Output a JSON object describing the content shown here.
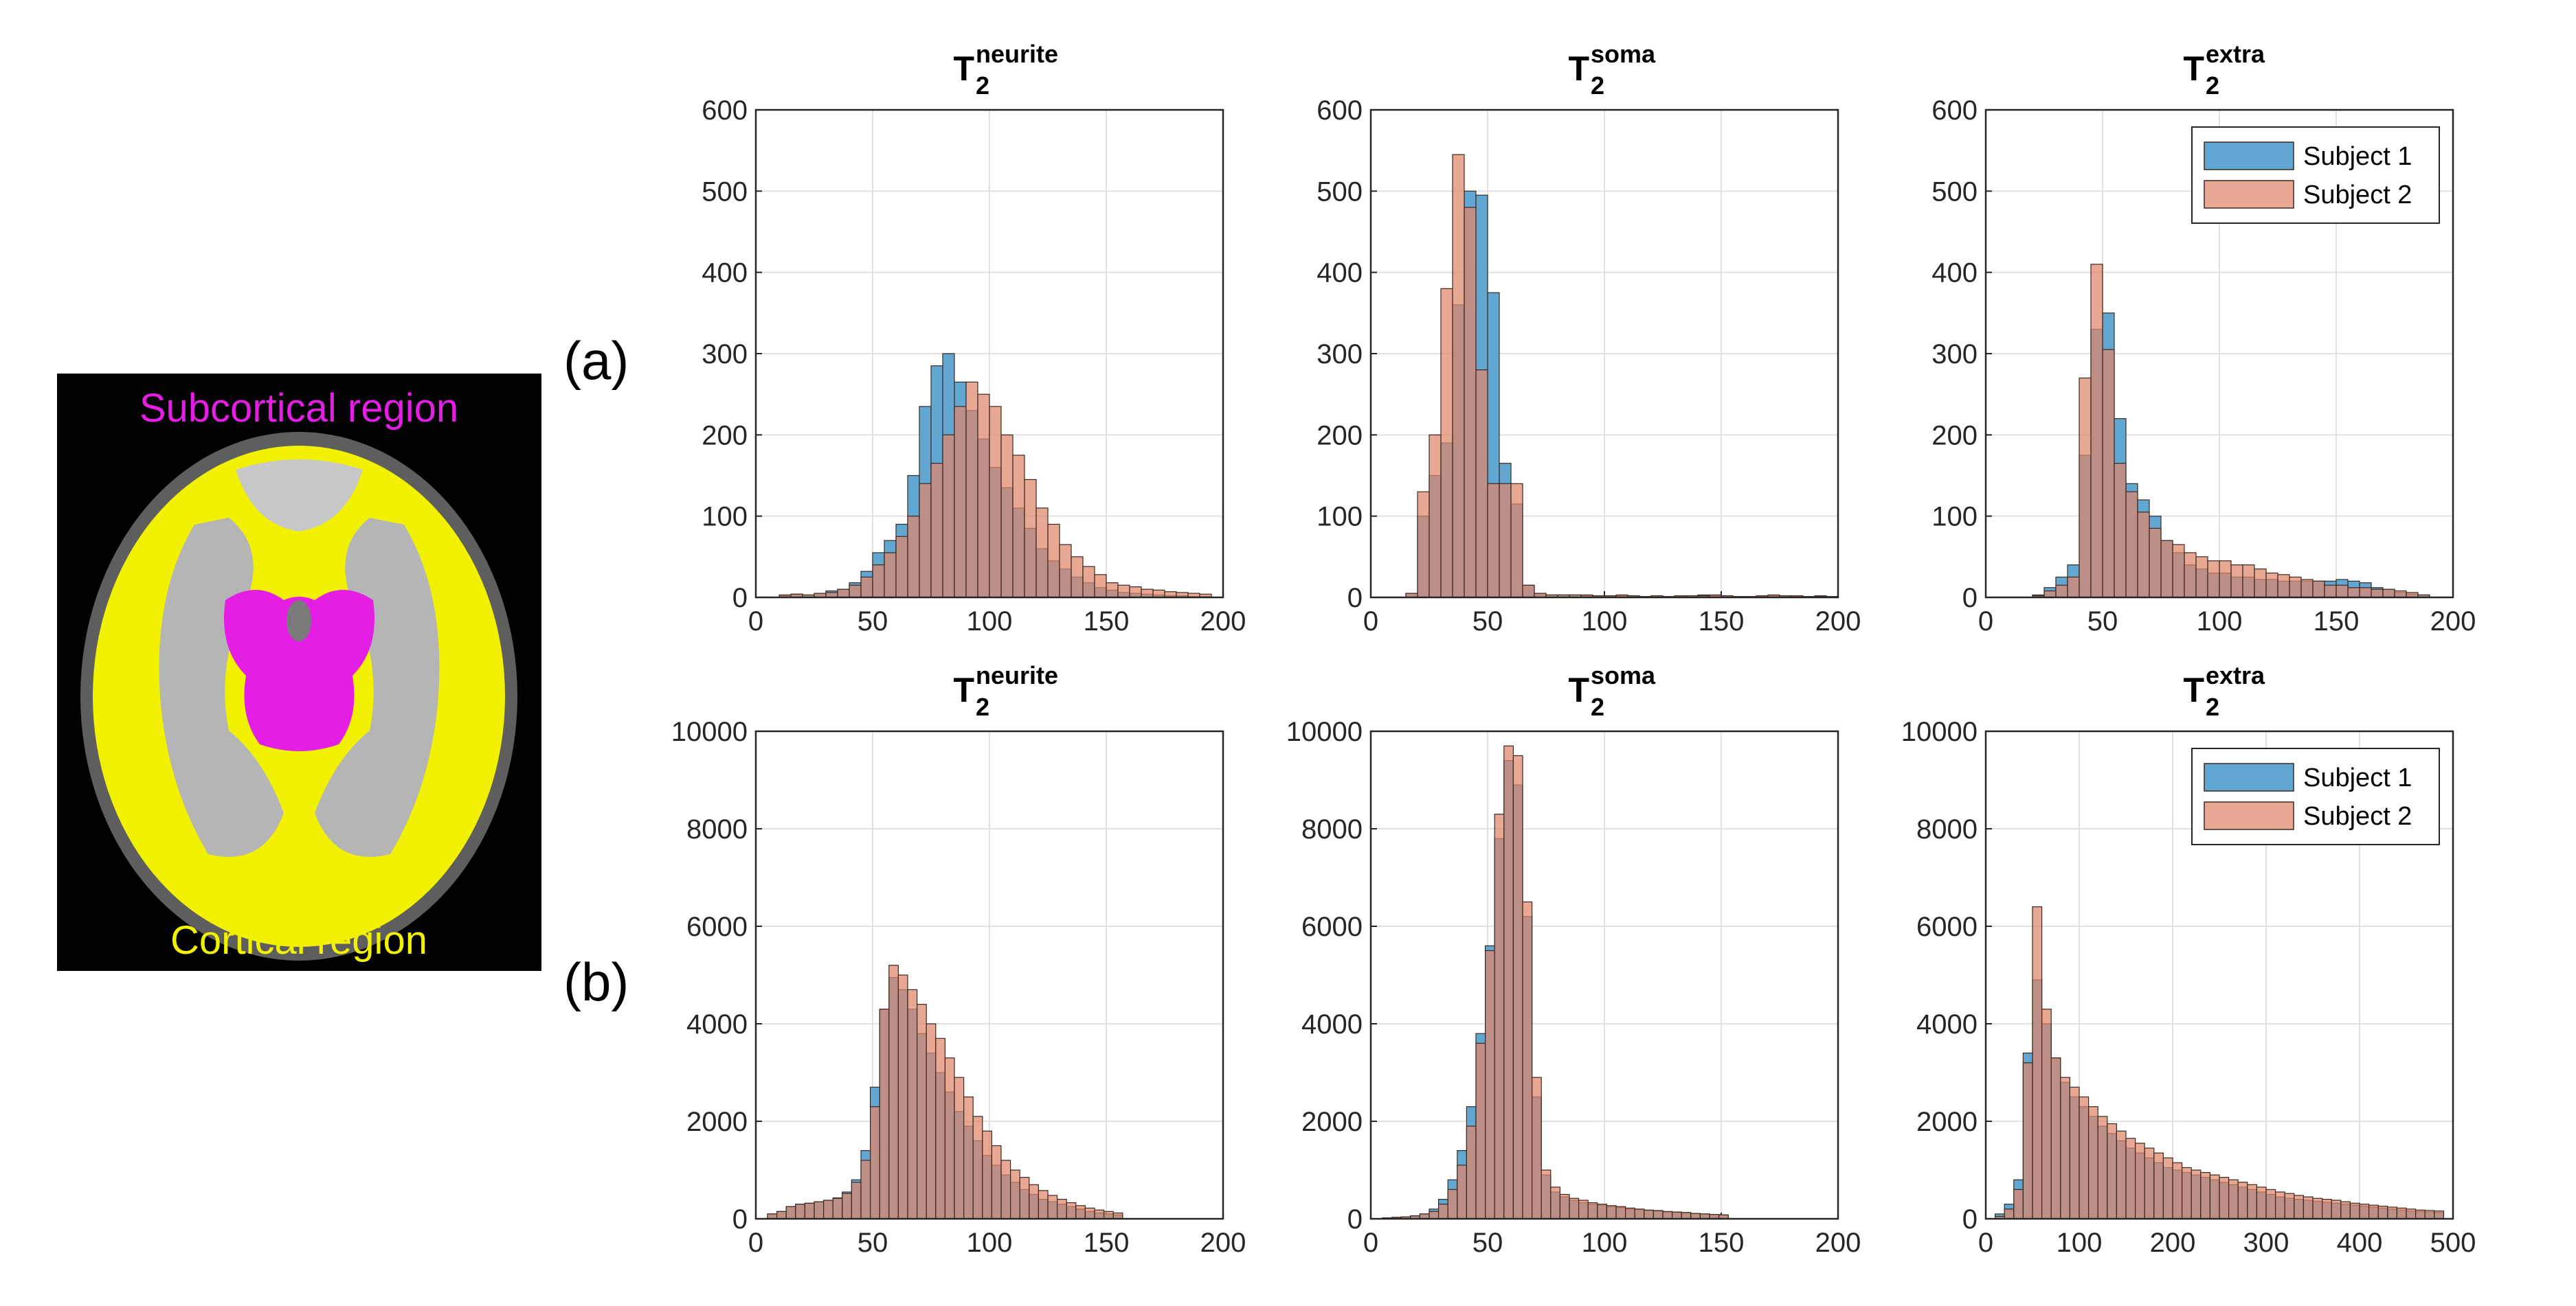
{
  "figure": {
    "row_labels": [
      "(a)",
      "(b)"
    ],
    "brain_labels": {
      "subcortical": "Subcortical region",
      "cortical": "Cortical region",
      "subcortical_color": "#e41ee4",
      "cortical_color": "#f2f200"
    }
  },
  "colors": {
    "subject1": "#5aa2cf",
    "subject2": "#e0876a"
  },
  "chart_data": [
    {
      "type": "bar",
      "title": {
        "main": "T",
        "sub": "2",
        "sup": "neurite"
      },
      "xlim": [
        0,
        200
      ],
      "ylim": [
        0,
        600
      ],
      "xticks": [
        0,
        50,
        100,
        150,
        200
      ],
      "yticks": [
        0,
        100,
        200,
        300,
        400,
        500,
        600
      ],
      "bin_start": 5,
      "bin_width": 5,
      "grid": true,
      "legend": null,
      "series": [
        {
          "name": "Subject 1",
          "values": [
            0,
            2,
            4,
            3,
            5,
            8,
            10,
            18,
            32,
            55,
            70,
            90,
            150,
            235,
            285,
            300,
            265,
            230,
            195,
            160,
            135,
            110,
            85,
            60,
            45,
            35,
            25,
            18,
            12,
            9,
            6,
            5,
            4,
            3,
            2,
            2,
            1,
            1
          ]
        },
        {
          "name": "Subject 2",
          "values": [
            0,
            3,
            4,
            3,
            5,
            6,
            10,
            15,
            25,
            40,
            55,
            75,
            100,
            140,
            165,
            200,
            235,
            265,
            250,
            235,
            200,
            175,
            145,
            110,
            90,
            65,
            50,
            38,
            28,
            18,
            15,
            13,
            10,
            9,
            7,
            6,
            5,
            4
          ]
        }
      ]
    },
    {
      "type": "bar",
      "title": {
        "main": "T",
        "sub": "2",
        "sup": "soma"
      },
      "xlim": [
        0,
        200
      ],
      "ylim": [
        0,
        600
      ],
      "xticks": [
        0,
        50,
        100,
        150,
        200
      ],
      "yticks": [
        0,
        100,
        200,
        300,
        400,
        500,
        600
      ],
      "bin_start": 15,
      "bin_width": 5,
      "grid": true,
      "legend": null,
      "series": [
        {
          "name": "Subject 1",
          "values": [
            5,
            100,
            150,
            190,
            360,
            500,
            495,
            375,
            165,
            115,
            15,
            5,
            3,
            3,
            3,
            2,
            2,
            2,
            2,
            2,
            1,
            1,
            1,
            1,
            2,
            3,
            2,
            2,
            1,
            1,
            1,
            2,
            2,
            1,
            1,
            2,
            1
          ]
        },
        {
          "name": "Subject 2",
          "values": [
            5,
            130,
            200,
            380,
            545,
            480,
            280,
            140,
            140,
            140,
            15,
            5,
            3,
            3,
            3,
            3,
            2,
            2,
            3,
            2,
            1,
            2,
            1,
            2,
            2,
            2,
            3,
            2,
            1,
            1,
            2,
            3,
            2,
            2,
            1,
            1,
            1
          ]
        }
      ]
    },
    {
      "type": "bar",
      "title": {
        "main": "T",
        "sub": "2",
        "sup": "extra"
      },
      "xlim": [
        0,
        200
      ],
      "ylim": [
        0,
        600
      ],
      "xticks": [
        0,
        50,
        100,
        150,
        200
      ],
      "yticks": [
        0,
        100,
        200,
        300,
        400,
        500,
        600
      ],
      "bin_start": 20,
      "bin_width": 5,
      "grid": true,
      "legend": "top-right",
      "series": [
        {
          "name": "Subject 1",
          "values": [
            3,
            12,
            25,
            40,
            175,
            330,
            350,
            220,
            140,
            120,
            100,
            70,
            55,
            40,
            35,
            30,
            30,
            25,
            25,
            22,
            22,
            20,
            20,
            20,
            20,
            20,
            22,
            20,
            18,
            12,
            10,
            6,
            4,
            3
          ]
        },
        {
          "name": "Subject 2",
          "values": [
            2,
            8,
            15,
            25,
            270,
            410,
            305,
            165,
            130,
            105,
            85,
            70,
            65,
            55,
            50,
            45,
            45,
            40,
            40,
            35,
            30,
            28,
            25,
            22,
            20,
            15,
            15,
            12,
            12,
            10,
            10,
            8,
            6,
            3
          ]
        }
      ]
    },
    {
      "type": "bar",
      "title": {
        "main": "T",
        "sub": "2",
        "sup": "neurite"
      },
      "xlim": [
        0,
        200
      ],
      "ylim": [
        0,
        10000
      ],
      "xticks": [
        0,
        50,
        100,
        150,
        200
      ],
      "yticks": [
        0,
        2000,
        4000,
        6000,
        8000,
        10000
      ],
      "bin_start": 5,
      "bin_width": 4,
      "grid": true,
      "legend": null,
      "series": [
        {
          "name": "Subject 1",
          "values": [
            100,
            150,
            250,
            300,
            320,
            350,
            380,
            430,
            550,
            800,
            1400,
            2700,
            4300,
            4950,
            4700,
            4300,
            3800,
            3400,
            3000,
            2600,
            2200,
            1900,
            1600,
            1300,
            1100,
            900,
            750,
            600,
            500,
            400,
            350,
            300,
            250,
            200,
            150,
            120,
            100,
            80
          ]
        },
        {
          "name": "Subject 2",
          "values": [
            100,
            150,
            250,
            300,
            320,
            350,
            380,
            420,
            520,
            750,
            1200,
            2300,
            4300,
            5200,
            5000,
            4700,
            4400,
            4000,
            3700,
            3300,
            2900,
            2500,
            2100,
            1800,
            1500,
            1200,
            1000,
            850,
            700,
            580,
            480,
            400,
            330,
            270,
            220,
            180,
            150,
            120
          ]
        }
      ]
    },
    {
      "type": "bar",
      "title": {
        "main": "T",
        "sub": "2",
        "sup": "soma"
      },
      "xlim": [
        0,
        200
      ],
      "ylim": [
        0,
        10000
      ],
      "xticks": [
        0,
        50,
        100,
        150,
        200
      ],
      "yticks": [
        0,
        2000,
        4000,
        6000,
        8000,
        10000
      ],
      "bin_start": 5,
      "bin_width": 4,
      "grid": true,
      "legend": null,
      "series": [
        {
          "name": "Subject 1",
          "values": [
            20,
            30,
            40,
            60,
            100,
            200,
            400,
            800,
            1400,
            2300,
            3800,
            5600,
            7800,
            9400,
            8900,
            6200,
            2500,
            900,
            550,
            450,
            380,
            330,
            300,
            280,
            250,
            230,
            200,
            190,
            170,
            160,
            140,
            130,
            120,
            110,
            100,
            90,
            80
          ]
        },
        {
          "name": "Subject 2",
          "values": [
            20,
            30,
            40,
            60,
            100,
            150,
            300,
            600,
            1100,
            1900,
            3600,
            5500,
            8300,
            9700,
            9500,
            6500,
            2900,
            1000,
            650,
            500,
            420,
            380,
            330,
            300,
            270,
            250,
            220,
            200,
            180,
            170,
            150,
            140,
            130,
            110,
            100,
            90,
            80
          ]
        }
      ]
    },
    {
      "type": "bar",
      "title": {
        "main": "T",
        "sub": "2",
        "sup": "extra"
      },
      "xlim": [
        0,
        500
      ],
      "ylim": [
        0,
        10000
      ],
      "xticks": [
        0,
        100,
        200,
        300,
        400,
        500
      ],
      "yticks": [
        0,
        2000,
        4000,
        6000,
        8000,
        10000
      ],
      "bin_start": 10,
      "bin_width": 10,
      "grid": true,
      "legend": "top-right",
      "series": [
        {
          "name": "Subject 1",
          "values": [
            100,
            300,
            800,
            3400,
            4900,
            4000,
            3300,
            2800,
            2500,
            2300,
            2100,
            1900,
            1750,
            1600,
            1450,
            1350,
            1250,
            1150,
            1050,
            1000,
            950,
            900,
            850,
            800,
            750,
            700,
            650,
            600,
            550,
            500,
            450,
            420,
            400,
            380,
            360,
            340,
            320,
            300,
            280,
            260,
            240,
            220,
            200,
            180,
            160,
            150,
            140,
            130
          ]
        },
        {
          "name": "Subject 2",
          "values": [
            50,
            200,
            600,
            3200,
            6400,
            4300,
            3300,
            2900,
            2700,
            2500,
            2300,
            2100,
            1950,
            1800,
            1650,
            1550,
            1450,
            1350,
            1250,
            1150,
            1050,
            1000,
            950,
            900,
            850,
            800,
            750,
            700,
            650,
            600,
            550,
            520,
            480,
            450,
            420,
            400,
            380,
            350,
            320,
            300,
            280,
            260,
            240,
            220,
            200,
            180,
            170,
            160
          ]
        }
      ]
    }
  ]
}
